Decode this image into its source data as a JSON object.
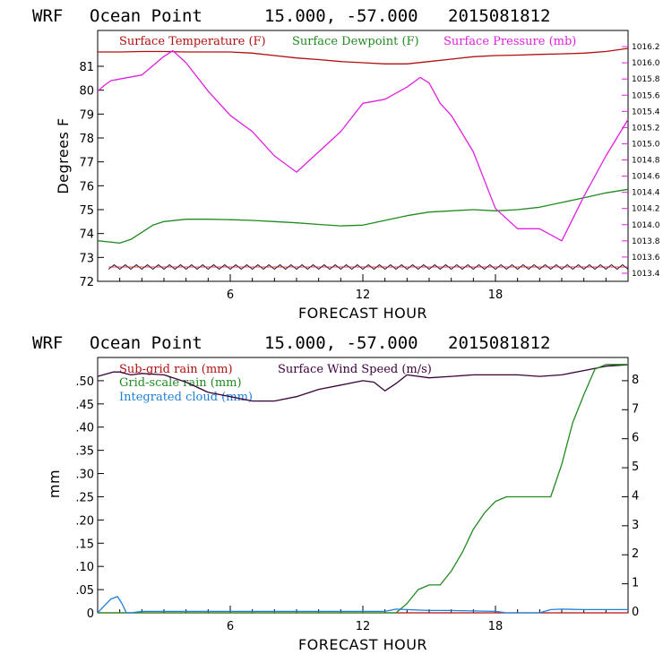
{
  "charts": [
    {
      "header": {
        "model": "WRF",
        "location": "Ocean Point",
        "coords": "15.000, -57.000",
        "init": "2015081812"
      },
      "xlabel": "FORECAST HOUR",
      "ylabel": "Degrees F",
      "legend": [
        "Surface Temperature (F)",
        "Surface Dewpoint (F)",
        "Surface Pressure (mb)"
      ]
    },
    {
      "header": {
        "model": "WRF",
        "location": "Ocean Point",
        "coords": "15.000, -57.000",
        "init": "2015081812"
      },
      "xlabel": "FORECAST HOUR",
      "ylabel": "mm",
      "legend": [
        "Sub-grid rain (mm)",
        "Surface Wind Speed (m/s)",
        "Grid-scale rain (mm)",
        "Integrated cloud (mm)"
      ]
    }
  ],
  "colors": {
    "temperature": "#b01010",
    "dewpoint": "#208a20",
    "pressure": "#e020e0",
    "subgrid_rain": "#b01010",
    "wind": "#3a003a",
    "gridscale_rain": "#208a20",
    "cloud": "#1e7fd8",
    "axes": "#000000"
  },
  "chart_data": [
    {
      "type": "line",
      "title": "WRF Ocean Point 15.000, -57.000 2015081812",
      "xlabel": "FORECAST HOUR",
      "ylabel": "Degrees F",
      "xlim": [
        0,
        24
      ],
      "ylim": [
        72,
        82.5
      ],
      "x_ticks": [
        "6",
        "12",
        "18"
      ],
      "x_tick_values": [
        6,
        12,
        18
      ],
      "y_ticks": [
        "72",
        "73",
        "74",
        "75",
        "76",
        "77",
        "78",
        "79",
        "80",
        "81"
      ],
      "y_right_ticks": [
        "1013.4",
        "1013.6",
        "1013.8",
        "1014.0",
        "1014.2",
        "1014.4",
        "1014.6",
        "1014.8",
        "1015.0",
        "1015.2",
        "1015.4",
        "1015.6",
        "1015.8",
        "1016.0",
        "1016.2"
      ],
      "y_right_lim": [
        1013.3,
        1016.4
      ],
      "series": [
        {
          "name": "Surface Temperature (F)",
          "axis": "left",
          "color_key": "temperature",
          "x": [
            0,
            1,
            2,
            3,
            4,
            5,
            6,
            7,
            8,
            9,
            10,
            11,
            12,
            13,
            14,
            15,
            16,
            17,
            18,
            19,
            20,
            21,
            22,
            23,
            24
          ],
          "values": [
            81.6,
            81.6,
            81.62,
            81.62,
            81.6,
            81.6,
            81.6,
            81.55,
            81.45,
            81.35,
            81.28,
            81.2,
            81.15,
            81.1,
            81.1,
            81.2,
            81.3,
            81.4,
            81.45,
            81.47,
            81.5,
            81.52,
            81.55,
            81.62,
            81.75
          ]
        },
        {
          "name": "Surface Dewpoint (F)",
          "axis": "left",
          "color_key": "dewpoint",
          "x": [
            0,
            0.5,
            1,
            1.5,
            2,
            2.5,
            3,
            4,
            5,
            6,
            7,
            8,
            9,
            10,
            11,
            12,
            13,
            14,
            15,
            16,
            17,
            18,
            19,
            20,
            21,
            22,
            23,
            24
          ],
          "values": [
            73.7,
            73.65,
            73.6,
            73.75,
            74.05,
            74.35,
            74.5,
            74.6,
            74.6,
            74.58,
            74.55,
            74.5,
            74.45,
            74.38,
            74.32,
            74.35,
            74.55,
            74.75,
            74.9,
            74.95,
            75.0,
            74.95,
            75.0,
            75.1,
            75.3,
            75.5,
            75.7,
            75.85
          ]
        },
        {
          "name": "Surface Pressure (mb)",
          "axis": "right",
          "color_key": "pressure",
          "x": [
            0,
            0.3,
            0.6,
            1,
            2,
            3,
            3.4,
            4,
            5,
            6,
            7,
            8,
            9,
            10,
            11,
            12,
            13,
            14,
            14.6,
            15,
            15.5,
            16,
            17,
            18,
            19,
            20,
            21,
            22,
            23,
            24
          ],
          "values": [
            1015.65,
            1015.72,
            1015.78,
            1015.8,
            1015.85,
            1016.08,
            1016.15,
            1016.0,
            1015.65,
            1015.35,
            1015.15,
            1014.85,
            1014.65,
            1014.9,
            1015.15,
            1015.5,
            1015.55,
            1015.7,
            1015.82,
            1015.75,
            1015.5,
            1015.35,
            1014.9,
            1014.2,
            1013.95,
            1013.95,
            1013.8,
            1014.35,
            1014.85,
            1015.3
          ]
        }
      ]
    },
    {
      "type": "line",
      "title": "WRF Ocean Point 15.000, -57.000 2015081812",
      "xlabel": "FORECAST HOUR",
      "ylabel": "mm",
      "xlim": [
        0,
        24
      ],
      "ylim": [
        0,
        0.55
      ],
      "x_ticks": [
        "6",
        "12",
        "18"
      ],
      "x_tick_values": [
        6,
        12,
        18
      ],
      "y_ticks": [
        "0",
        ".05",
        ".10",
        ".15",
        ".20",
        ".25",
        ".30",
        ".35",
        ".40",
        ".45",
        ".50"
      ],
      "y_right_ticks": [
        "0",
        "1",
        "2",
        "3",
        "4",
        "5",
        "6",
        "7",
        "8"
      ],
      "y_right_lim": [
        0,
        8.8
      ],
      "series": [
        {
          "name": "Sub-grid rain (mm)",
          "axis": "left",
          "color_key": "subgrid_rain",
          "x": [
            0,
            24
          ],
          "values": [
            0,
            0
          ]
        },
        {
          "name": "Surface Wind Speed (m/s)",
          "axis": "right",
          "color_key": "wind",
          "x": [
            0,
            0.7,
            1,
            1.5,
            2,
            3,
            4,
            5,
            6,
            7,
            8,
            9,
            10,
            11,
            12,
            12.5,
            13,
            13.5,
            14,
            15,
            16,
            17,
            18,
            19,
            20,
            21,
            22,
            23,
            24
          ],
          "values": [
            8.15,
            8.3,
            8.3,
            8.2,
            8.25,
            8.2,
            7.95,
            7.6,
            7.45,
            7.3,
            7.3,
            7.45,
            7.7,
            7.85,
            8.0,
            7.95,
            7.65,
            7.9,
            8.2,
            8.1,
            8.15,
            8.2,
            8.2,
            8.2,
            8.15,
            8.2,
            8.35,
            8.5,
            8.55
          ]
        },
        {
          "name": "Grid-scale rain (mm)",
          "axis": "left",
          "color_key": "gridscale_rain",
          "x": [
            0,
            13.5,
            14,
            14.5,
            15,
            15.5,
            16,
            16.5,
            17,
            17.5,
            18,
            18.5,
            19,
            20,
            20.5,
            21,
            21.5,
            22,
            22.5,
            23,
            24
          ],
          "values": [
            0,
            0,
            0.02,
            0.05,
            0.06,
            0.06,
            0.09,
            0.13,
            0.18,
            0.215,
            0.24,
            0.25,
            0.25,
            0.25,
            0.25,
            0.32,
            0.41,
            0.47,
            0.525,
            0.535,
            0.535
          ]
        },
        {
          "name": "Integrated cloud (mm)",
          "axis": "left",
          "color_key": "cloud",
          "x": [
            0,
            0.3,
            0.6,
            0.9,
            1.1,
            1.3,
            1.5,
            2,
            12,
            13,
            13.5,
            14,
            14.5,
            15,
            16,
            17,
            18,
            18.5,
            19,
            20,
            20.5,
            21,
            22,
            23,
            24
          ],
          "values": [
            0,
            0.015,
            0.03,
            0.035,
            0.02,
            0.0,
            0.0,
            0.003,
            0.003,
            0.003,
            0.008,
            0.007,
            0.006,
            0.005,
            0.005,
            0.004,
            0.003,
            0.0,
            0.0,
            0.0,
            0.007,
            0.008,
            0.007,
            0.007,
            0.007
          ]
        }
      ]
    }
  ]
}
